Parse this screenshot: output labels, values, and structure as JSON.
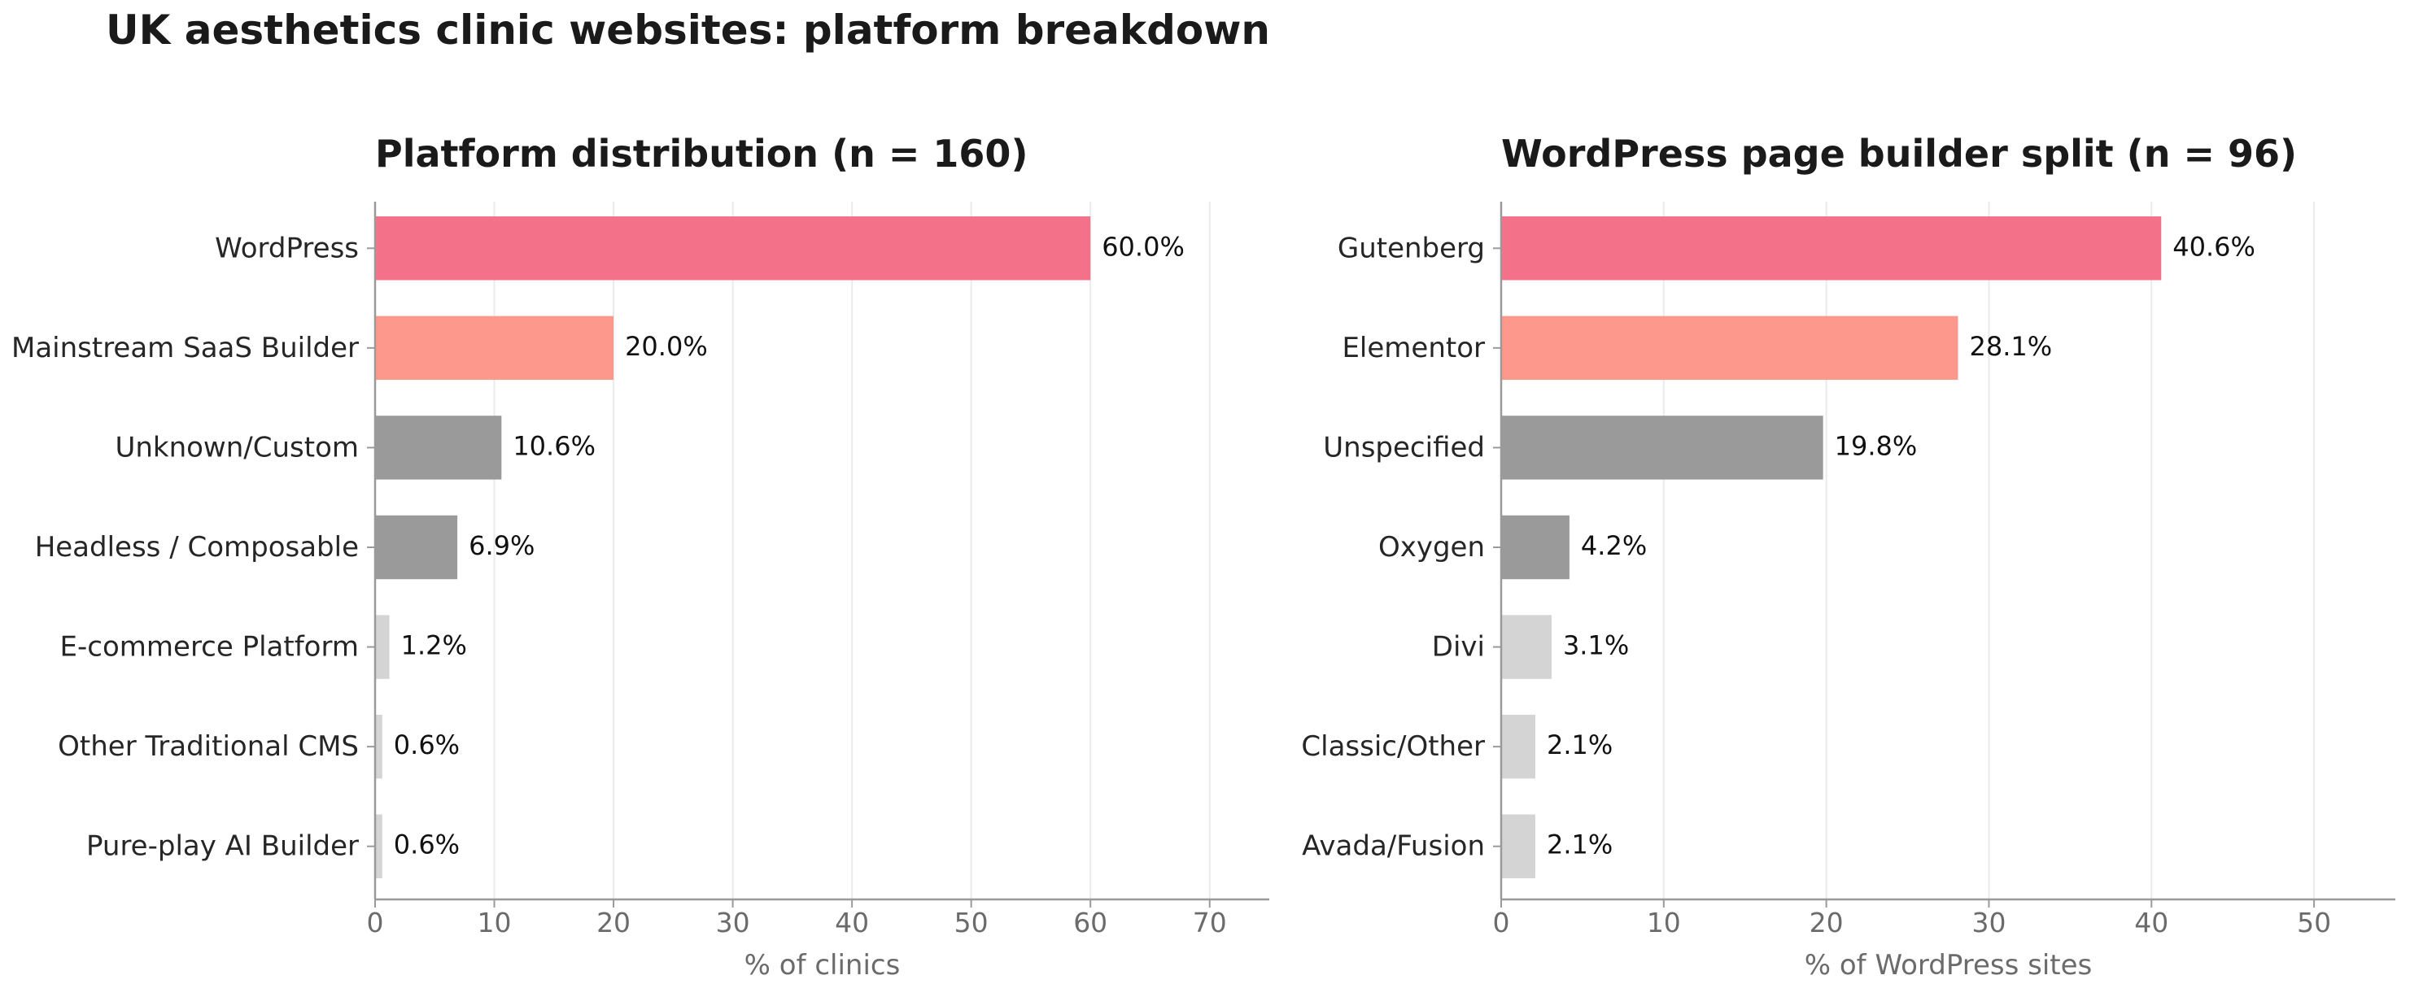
{
  "title": "UK aesthetics clinic websites: platform breakdown",
  "chart_data": [
    {
      "type": "bar",
      "orientation": "horizontal",
      "title": "Platform distribution (n = 160)",
      "xlabel": "% of clinics",
      "ylabel": "",
      "categories": [
        "WordPress",
        "Mainstream SaaS Builder",
        "Unknown/Custom",
        "Headless / Composable",
        "E-commerce Platform",
        "Other Traditional CMS",
        "Pure-play AI Builder"
      ],
      "values": [
        60.0,
        20.0,
        10.6,
        6.9,
        1.2,
        0.6,
        0.6
      ],
      "value_labels": [
        "60.0%",
        "20.0%",
        "10.6%",
        "6.9%",
        "1.2%",
        "0.6%",
        "0.6%"
      ],
      "colors": [
        "#f4718a",
        "#fd988c",
        "#9a9a9a",
        "#9a9a9a",
        "#d4d4d4",
        "#d4d4d4",
        "#d4d4d4"
      ],
      "xlim": [
        0,
        75
      ],
      "xticks": [
        0,
        10,
        20,
        30,
        40,
        50,
        60,
        70
      ],
      "grid": "vertical"
    },
    {
      "type": "bar",
      "orientation": "horizontal",
      "title": "WordPress page builder split (n = 96)",
      "xlabel": "% of WordPress sites",
      "ylabel": "",
      "categories": [
        "Gutenberg",
        "Elementor",
        "Unspecified",
        "Oxygen",
        "Divi",
        "Classic/Other",
        "Avada/Fusion"
      ],
      "values": [
        40.6,
        28.1,
        19.8,
        4.2,
        3.1,
        2.1,
        2.1
      ],
      "value_labels": [
        "40.6%",
        "28.1%",
        "19.8%",
        "4.2%",
        "3.1%",
        "2.1%",
        "2.1%"
      ],
      "colors": [
        "#f4718a",
        "#fd988c",
        "#9a9a9a",
        "#9a9a9a",
        "#d4d4d4",
        "#d4d4d4",
        "#d4d4d4"
      ],
      "xlim": [
        0,
        55
      ],
      "xticks": [
        0,
        10,
        20,
        30,
        40,
        50
      ],
      "grid": "vertical"
    }
  ]
}
